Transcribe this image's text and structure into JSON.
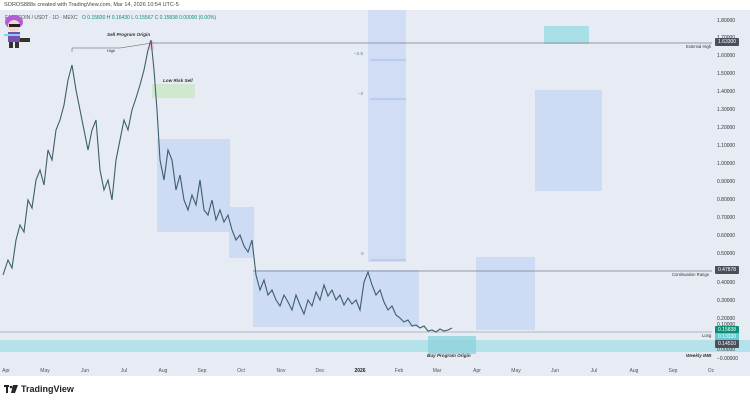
{
  "caption": "SOROS888s created with TradingView.com, Mar 14, 2026 10:54 UTC-5",
  "symbol": {
    "name": "FARTCOIN / USDT · 1D · MEXC",
    "ohlc": "O 0.15830  H 0.16430  L 0.15567  C 0.15838  0.00000 (0.00%)"
  },
  "y_axis": {
    "labels": [
      "1.80000",
      "1.70000",
      "1.60000",
      "1.50000",
      "1.40000",
      "1.30000",
      "1.20000",
      "1.10000",
      "1.00000",
      "0.90000",
      "0.80000",
      "0.70000",
      "0.60000",
      "0.50000",
      "0.40000",
      "0.30000",
      "0.20000",
      "0.10000",
      "0.00000",
      "−0.00000"
    ],
    "tags": [
      {
        "text": "1.63300",
        "color": "#4a4f59"
      },
      {
        "text": "0.47878",
        "color": "#4a4f59"
      },
      {
        "text": "0.15838",
        "color": "#0c8f75"
      },
      {
        "text": "0.13330",
        "color": "#64c8d4"
      },
      {
        "text": "0.14510",
        "color": "#4a4f59"
      }
    ]
  },
  "x_axis": {
    "labels": [
      "Apr",
      "May",
      "Jun",
      "Jul",
      "Aug",
      "Sep",
      "Oct",
      "Nov",
      "Dec",
      "2026",
      "Feb",
      "Mar",
      "Apr",
      "May",
      "Jun",
      "Jul",
      "Aug",
      "Sep",
      "Oc"
    ]
  },
  "annotations": {
    "sell_origin": "Sell Program Origin",
    "high": "High",
    "low_risk": "Low Risk Sell",
    "external_high": "External High",
    "continuation": "Continuation Range",
    "long": "Long",
    "buy_origin": "Buy Program Origin",
    "weekly_imb": "Weekly IMB",
    "fib_25": "−2.5",
    "fib_2": "−2",
    "fib_0": "0"
  },
  "chart_data": {
    "type": "line",
    "x": [
      "Apr",
      "May",
      "Jun",
      "Jul",
      "Aug",
      "Sep",
      "Oct",
      "Nov",
      "Dec",
      "2026",
      "Feb",
      "Mar"
    ],
    "values": [
      0.33,
      1.3,
      1.1,
      1.63,
      1.1,
      0.78,
      0.62,
      0.3,
      0.32,
      0.4,
      0.22,
      0.158
    ],
    "ylim": [
      0,
      1.85
    ],
    "levels": [
      1.633,
      0.47878,
      0.1451
    ]
  },
  "colors": {
    "background": "#e7ebf4",
    "candle": "#3d5f6a",
    "box_blue": "#c9d8f5",
    "box_teal": "#a9dfe7",
    "box_green": "#cfe8cf",
    "line": "#7a7f88"
  },
  "footer": {
    "brand": "TradingView",
    "logo_icon": "tradingview-logo-icon"
  }
}
